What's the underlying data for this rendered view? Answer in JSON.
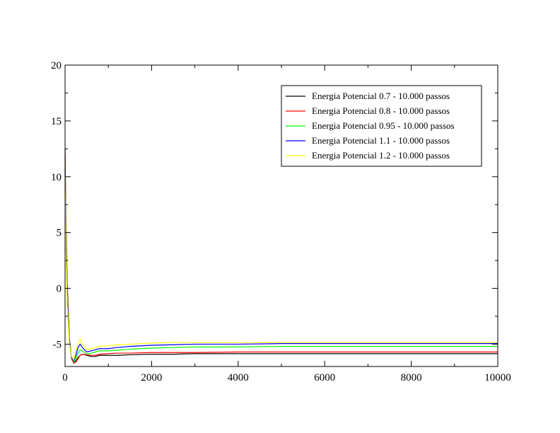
{
  "chart_data": {
    "type": "line",
    "title": "",
    "xlabel": "",
    "ylabel": "",
    "xlim": [
      0,
      10000
    ],
    "ylim": [
      -7,
      20
    ],
    "x_ticks": [
      "0",
      "2000",
      "4000",
      "6000",
      "8000",
      "10000"
    ],
    "x_tick_values": [
      0,
      2000,
      4000,
      6000,
      8000,
      10000
    ],
    "y_ticks": [
      "20",
      "15",
      "10",
      "5",
      "0",
      "-5"
    ],
    "y_tick_values": [
      20,
      15,
      10,
      5,
      0,
      -5
    ],
    "grid": false,
    "legend_position": "top-right",
    "series": [
      {
        "name": "Energia Potencial 0.7 - 10.000 passos",
        "color": "#000000",
        "x": [
          0,
          20,
          50,
          100,
          150,
          200,
          250,
          300,
          350,
          400,
          500,
          600,
          700,
          800,
          1000,
          1200,
          1500,
          2000,
          2500,
          3000,
          4000,
          5000,
          6000,
          7000,
          8000,
          9000,
          10000
        ],
        "y": [
          12.5,
          6.0,
          0.5,
          -4.5,
          -6.2,
          -6.7,
          -6.5,
          -6.2,
          -6.0,
          -5.9,
          -6.0,
          -6.1,
          -6.1,
          -6.0,
          -6.0,
          -6.0,
          -5.95,
          -5.9,
          -5.9,
          -5.85,
          -5.85,
          -5.85,
          -5.85,
          -5.85,
          -5.85,
          -5.85,
          -5.85
        ]
      },
      {
        "name": "Energia Potencial 0.8 - 10.000 passos",
        "color": "#ff0000",
        "x": [
          0,
          20,
          50,
          100,
          150,
          200,
          250,
          300,
          350,
          400,
          500,
          600,
          700,
          800,
          1000,
          1200,
          1500,
          2000,
          2500,
          3000,
          4000,
          5000,
          6000,
          7000,
          8000,
          9000,
          10000
        ],
        "y": [
          12.0,
          5.0,
          0.0,
          -4.8,
          -6.3,
          -6.7,
          -6.6,
          -6.3,
          -6.0,
          -5.9,
          -5.95,
          -6.0,
          -6.0,
          -5.9,
          -5.85,
          -5.8,
          -5.8,
          -5.75,
          -5.75,
          -5.75,
          -5.7,
          -5.7,
          -5.7,
          -5.7,
          -5.7,
          -5.7,
          -5.7
        ]
      },
      {
        "name": "Energia Potencial 0.95 - 10.000 passos",
        "color": "#00ff00",
        "x": [
          0,
          20,
          50,
          100,
          150,
          200,
          250,
          300,
          350,
          400,
          500,
          600,
          700,
          800,
          1000,
          1200,
          1500,
          2000,
          2500,
          3000,
          4000,
          5000,
          6000,
          7000,
          8000,
          9000,
          10000
        ],
        "y": [
          11.0,
          4.5,
          -0.5,
          -4.8,
          -6.2,
          -6.6,
          -6.3,
          -5.8,
          -5.5,
          -5.6,
          -5.9,
          -5.8,
          -5.7,
          -5.6,
          -5.6,
          -5.55,
          -5.45,
          -5.35,
          -5.3,
          -5.25,
          -5.25,
          -5.2,
          -5.2,
          -5.2,
          -5.2,
          -5.2,
          -5.2
        ]
      },
      {
        "name": "Energia Potencial 1.1 - 10.000 passos",
        "color": "#0000ff",
        "x": [
          0,
          20,
          50,
          100,
          150,
          200,
          250,
          300,
          350,
          400,
          500,
          600,
          700,
          800,
          1000,
          1200,
          1500,
          2000,
          2500,
          3000,
          4000,
          5000,
          6000,
          7000,
          8000,
          9000,
          10000
        ],
        "y": [
          10.5,
          4.0,
          -1.0,
          -4.9,
          -6.2,
          -6.5,
          -6.0,
          -5.3,
          -5.0,
          -5.3,
          -5.7,
          -5.6,
          -5.5,
          -5.4,
          -5.4,
          -5.3,
          -5.2,
          -5.1,
          -5.05,
          -5.0,
          -5.0,
          -4.95,
          -4.95,
          -4.95,
          -4.95,
          -4.95,
          -4.95
        ]
      },
      {
        "name": "Energia Potencial 1.2 - 10.000 passos",
        "color": "#ffff00",
        "x": [
          0,
          20,
          50,
          100,
          150,
          200,
          250,
          300,
          350,
          400,
          500,
          600,
          700,
          800,
          1000,
          1200,
          1500,
          2000,
          2500,
          3000,
          4000,
          5000,
          6000,
          7000,
          8000,
          9000,
          10000
        ],
        "y": [
          10.0,
          3.5,
          -1.5,
          -5.0,
          -6.1,
          -6.4,
          -5.6,
          -4.9,
          -4.6,
          -5.0,
          -5.5,
          -5.4,
          -5.3,
          -5.2,
          -5.15,
          -5.05,
          -5.0,
          -4.9,
          -4.85,
          -4.85,
          -4.85,
          -4.85,
          -4.85,
          -4.85,
          -4.85,
          -4.85,
          -4.85
        ]
      }
    ]
  }
}
